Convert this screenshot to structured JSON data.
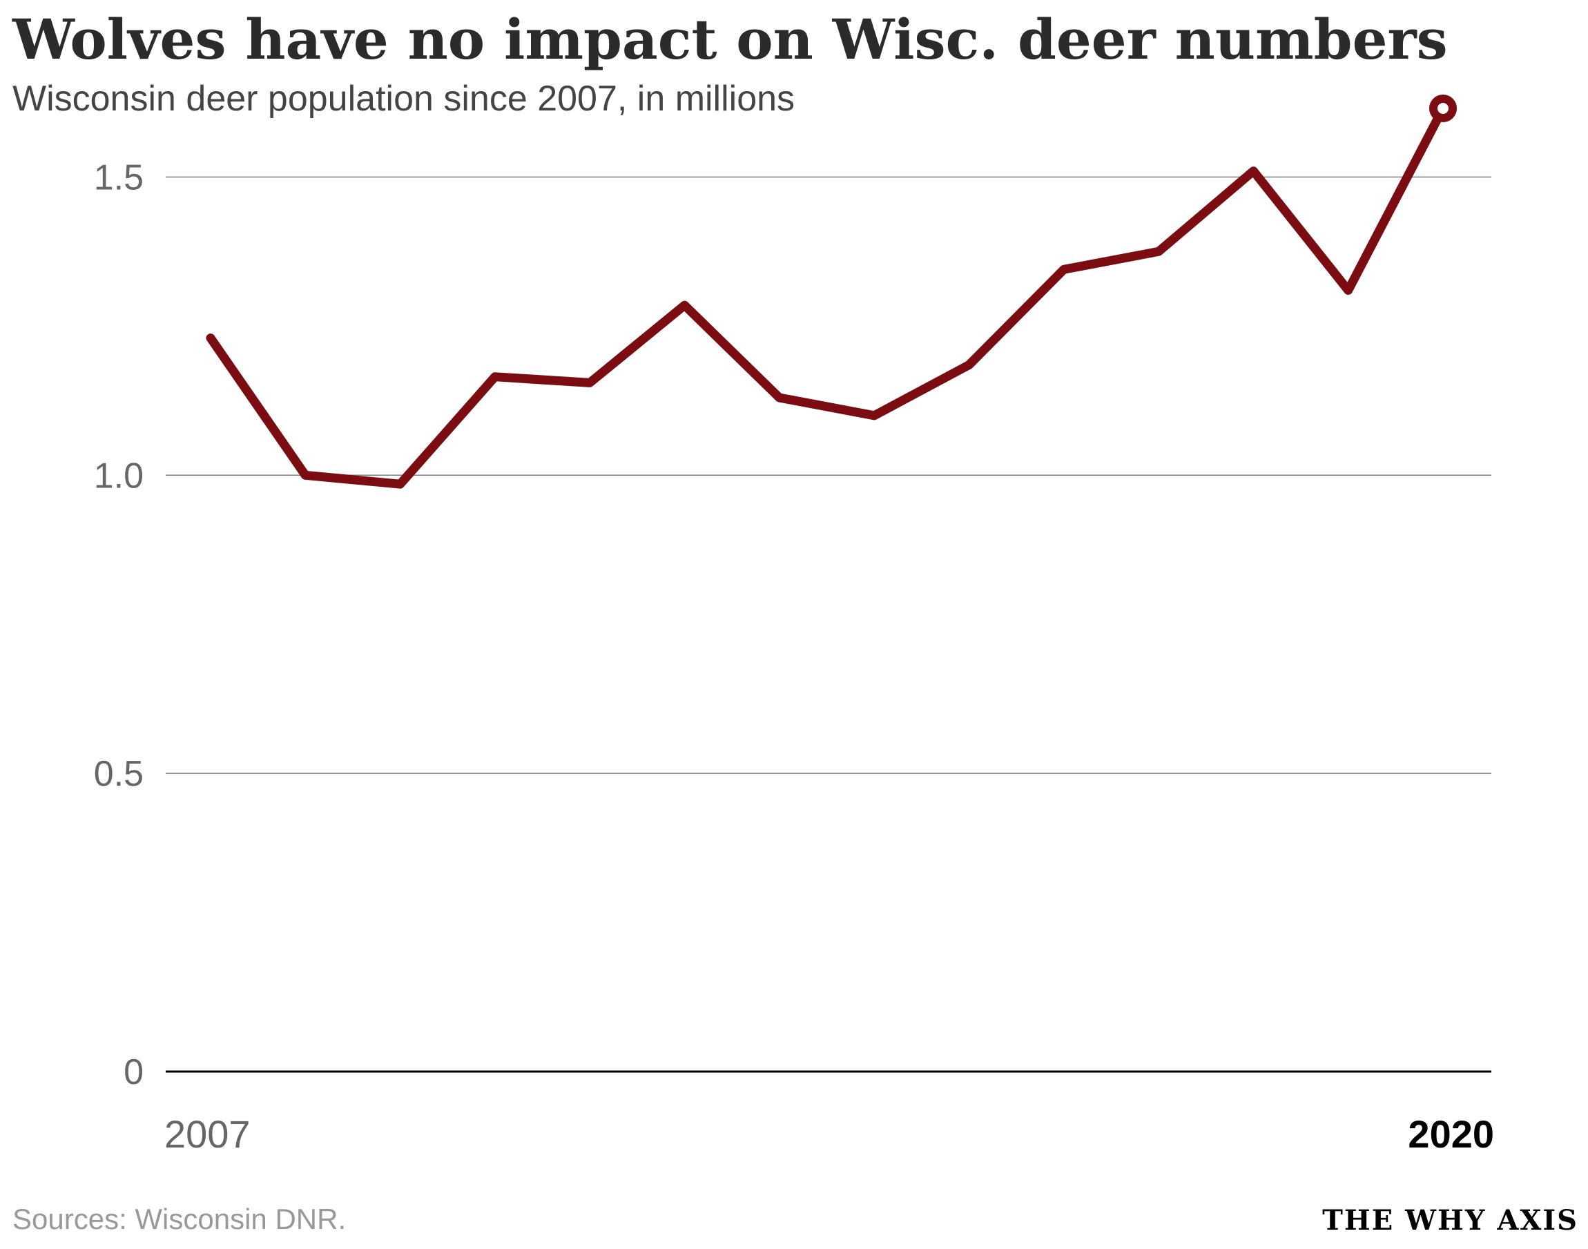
{
  "header": {
    "title": "Wolves have no impact on Wisc. deer numbers",
    "subtitle": "Wisconsin deer population since 2007, in millions"
  },
  "footer": {
    "source": "Sources: Wisconsin DNR.",
    "brand": "THE WHY AXIS"
  },
  "colors": {
    "line": "#7a0c12",
    "gridline": "#7f7f7f",
    "baseline": "#000000"
  },
  "chart_data": {
    "type": "line",
    "title": "Wolves have no impact on Wisc. deer numbers",
    "subtitle": "Wisconsin deer population since 2007, in millions",
    "xlabel": "",
    "ylabel": "",
    "x": [
      2007,
      2008,
      2009,
      2010,
      2011,
      2012,
      2013,
      2014,
      2015,
      2016,
      2017,
      2018,
      2019,
      2020
    ],
    "series": [
      {
        "values": [
          1.23,
          1.0,
          0.985,
          1.165,
          1.155,
          1.285,
          1.13,
          1.1,
          1.185,
          1.345,
          1.375,
          1.51,
          1.31,
          1.615
        ]
      }
    ],
    "ylim": [
      0,
      1.6
    ],
    "xlim": [
      2007,
      2020
    ],
    "yticks": [
      0,
      0.5,
      1.0,
      1.5
    ],
    "ytick_labels": [
      "0",
      "0.5",
      "1.0",
      "1.5"
    ],
    "xtick_labels": [
      "2007",
      "2020"
    ],
    "grid": true,
    "legend": "none",
    "end_marker": "hollow circle on last point"
  }
}
